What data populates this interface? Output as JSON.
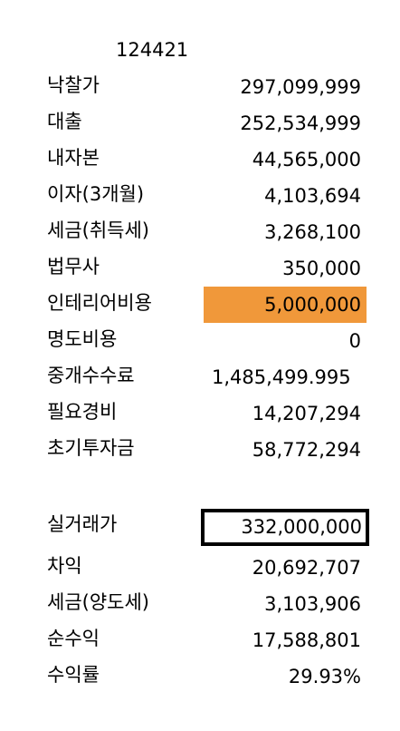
{
  "sheet": {
    "id_value": "124421",
    "rows": [
      {
        "key": "bid_price",
        "label": "낙찰가",
        "value": "297,099,999"
      },
      {
        "key": "loan",
        "label": "대출",
        "value": "252,534,999"
      },
      {
        "key": "own_capital",
        "label": "내자본",
        "value": "44,565,000"
      },
      {
        "key": "interest",
        "label": "이자(3개월)",
        "value": "4,103,694"
      },
      {
        "key": "acquisition_tax",
        "label": "세금(취득세)",
        "value": "3,268,100"
      },
      {
        "key": "legal_fee",
        "label": "법무사",
        "value": "350,000"
      },
      {
        "key": "interior_cost",
        "label": "인테리어비용",
        "value": "5,000,000",
        "fill_color": "#f0983a"
      },
      {
        "key": "eviction_cost",
        "label": "명도비용",
        "value": "0"
      },
      {
        "key": "brokerage_fee",
        "label": "중개수수료",
        "value": "1,485,499.995"
      },
      {
        "key": "necessary_expense",
        "label": "필요경비",
        "value": "14,207,294"
      },
      {
        "key": "initial_investment",
        "label": "초기투자금",
        "value": "58,772,294"
      }
    ],
    "result_rows": [
      {
        "key": "actual_price",
        "label": "실거래가",
        "value": "332,000,000"
      },
      {
        "key": "margin",
        "label": "차익",
        "value": "20,692,707"
      },
      {
        "key": "capital_gains_tax",
        "label": "세금(양도세)",
        "value": "3,103,906"
      },
      {
        "key": "net_profit",
        "label": "순수익",
        "value": "17,588,801"
      },
      {
        "key": "return_rate",
        "label": "수익률",
        "value": "29.93%"
      }
    ]
  }
}
